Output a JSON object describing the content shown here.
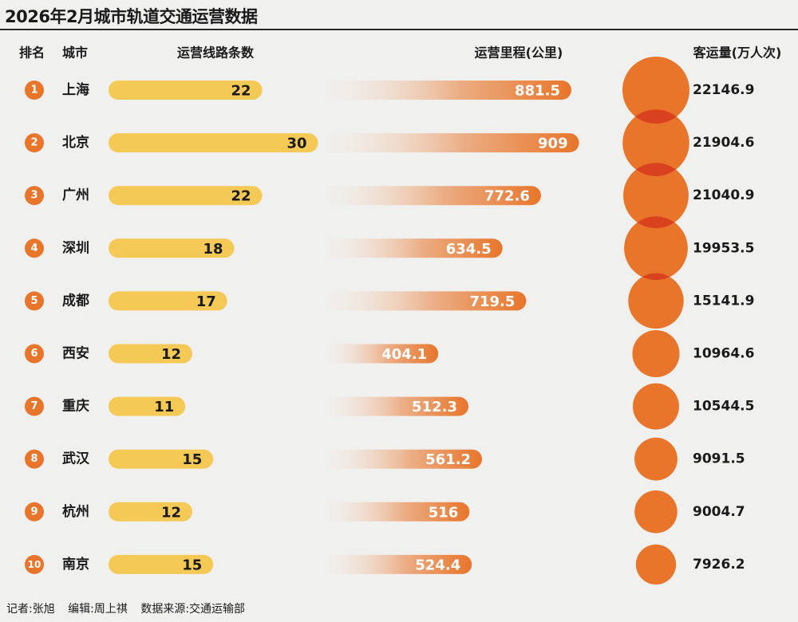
{
  "title": "2026年2月城市轨道交通运营数据",
  "footer": {
    "reporter": "记者:张旭",
    "editor": "编辑:周上祺",
    "source": "数据来源:交通运输部"
  },
  "colors": {
    "badge": "#e8752a",
    "lines_bar": "#f5c955",
    "mileage_bar_start": "#f8e4d2",
    "mileage_bar_end": "#e8752a",
    "bubble": "#e8752a",
    "bubble_overlap": "#d9411f",
    "background": "#f0f0ef"
  },
  "chart_data": {
    "type": "table",
    "headers": {
      "rank": "排名",
      "city": "城市",
      "lines": "运营线路条数",
      "mileage": "运营里程(公里)",
      "passengers": "客运量(万人次)"
    },
    "rows": [
      {
        "rank": "1",
        "city": "上海",
        "lines": 22,
        "mileage": 881.5,
        "passengers": 22146.9
      },
      {
        "rank": "2",
        "city": "北京",
        "lines": 30,
        "mileage": 909,
        "passengers": 21904.6
      },
      {
        "rank": "3",
        "city": "广州",
        "lines": 22,
        "mileage": 772.6,
        "passengers": 21040.9
      },
      {
        "rank": "4",
        "city": "深圳",
        "lines": 18,
        "mileage": 634.5,
        "passengers": 19953.5
      },
      {
        "rank": "5",
        "city": "成都",
        "lines": 17,
        "mileage": 719.5,
        "passengers": 15141.9
      },
      {
        "rank": "6",
        "city": "西安",
        "lines": 12,
        "mileage": 404.1,
        "passengers": 10964.6
      },
      {
        "rank": "7",
        "city": "重庆",
        "lines": 11,
        "mileage": 512.3,
        "passengers": 10544.5
      },
      {
        "rank": "8",
        "city": "武汉",
        "lines": 15,
        "mileage": 561.2,
        "passengers": 9091.5
      },
      {
        "rank": "9",
        "city": "杭州",
        "lines": 12,
        "mileage": 516,
        "passengers": 9004.7
      },
      {
        "rank": "10",
        "city": "南京",
        "lines": 15,
        "mileage": 524.4,
        "passengers": 7926.2
      }
    ],
    "lines_value_labels": [
      "22",
      "30",
      "22",
      "18",
      "17",
      "12",
      "11",
      "15",
      "12",
      "15"
    ],
    "mileage_value_labels": [
      "881.5",
      "909",
      "772.6",
      "634.5",
      "719.5",
      "404.1",
      "512.3",
      "561.2",
      "516",
      "524.4"
    ],
    "passenger_value_labels": [
      "22146.9",
      "21904.6",
      "21040.9",
      "19953.5",
      "15141.9",
      "10964.6",
      "10544.5",
      "9091.5",
      "9004.7",
      "7926.2"
    ]
  }
}
